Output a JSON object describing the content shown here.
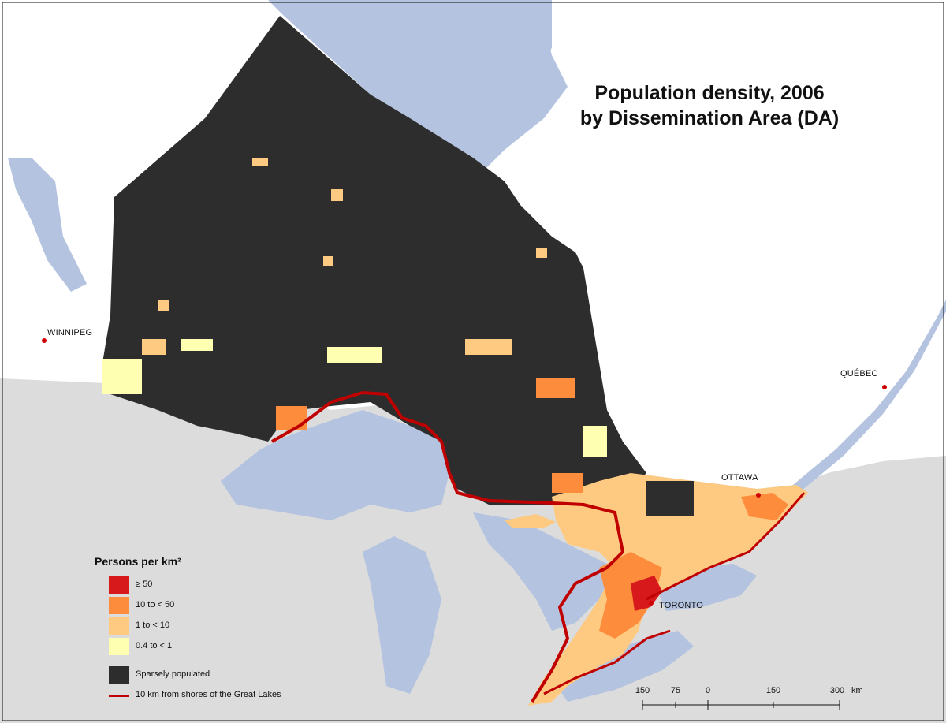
{
  "title": {
    "line1": "Population density, 2006",
    "line2": "by Dissemination Area (DA)"
  },
  "cities": {
    "winnipeg": "WINNIPEG",
    "quebec": "QUÉBEC",
    "ottawa": "OTTAWA",
    "toronto": "TORONTO"
  },
  "legend": {
    "title": "Persons per km²",
    "items": [
      {
        "label": "≥ 50",
        "color": "#d7191c"
      },
      {
        "label": "10 to < 50",
        "color": "#fd8d3c"
      },
      {
        "label": "1 to < 10",
        "color": "#fec980"
      },
      {
        "label": "0.4 to < 1",
        "color": "#ffffb2"
      },
      {
        "label": "Sparsely populated",
        "color": "#2d2d2d"
      }
    ],
    "line_label": "10 km from shores of the Great Lakes",
    "line_color": "#c00000"
  },
  "scale": {
    "ticks": [
      "150",
      "75",
      "0",
      "150",
      "300"
    ],
    "unit": "km"
  },
  "colors": {
    "water": "#b3c3e0",
    "land_outside": "#dcdcdc",
    "land_north": "#ffffff",
    "sparse": "#2d2d2d",
    "shore_line": "#c00000",
    "city_dot": "#d00000"
  }
}
